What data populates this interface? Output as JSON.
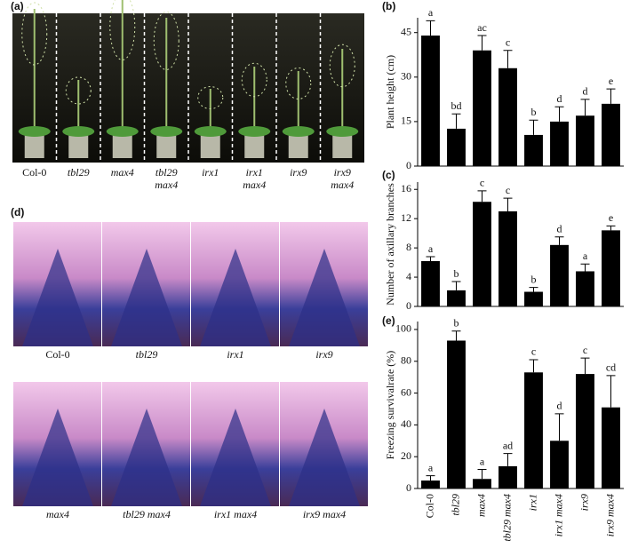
{
  "figure": {
    "panel_labels": [
      "(a)",
      "(b)",
      "(c)",
      "(d)",
      "(e)"
    ],
    "photos_a": [
      [
        "Col-0"
      ],
      [
        "tbl29"
      ],
      [
        "max4"
      ],
      [
        "tbl29",
        "max4"
      ],
      [
        "irx1"
      ],
      [
        "irx1",
        "max4"
      ],
      [
        "irx9"
      ],
      [
        "irx9",
        "max4"
      ]
    ],
    "photos_d": [
      "Col-0",
      "tbl29",
      "irx1",
      "irx9",
      "max4",
      "tbl29 max4",
      "irx1 max4",
      "irx9 max4"
    ]
  },
  "chart_data": [
    {
      "type": "bar",
      "ylabel": "Plant height (cm)",
      "color": "#000000",
      "categories": [
        null,
        null,
        null,
        null,
        null,
        null,
        null,
        null
      ],
      "values": [
        44,
        12.6,
        39,
        33,
        10.5,
        15,
        17,
        21
      ],
      "errors": [
        5,
        5,
        5,
        6,
        5,
        5,
        5.5,
        5
      ],
      "letters": [
        "a",
        "bd",
        "ac",
        "c",
        "b",
        "d",
        "d",
        "e"
      ],
      "ylim": [
        0,
        50
      ],
      "yticks": [
        0,
        15,
        30,
        45
      ]
    },
    {
      "type": "bar",
      "ylabel": "Number of axillary branches",
      "color": "#000000",
      "categories": [
        null,
        null,
        null,
        null,
        null,
        null,
        null,
        null
      ],
      "values": [
        6.2,
        2.2,
        14.3,
        13,
        2,
        8.4,
        4.8,
        10.4
      ],
      "errors": [
        0.6,
        1.2,
        1.5,
        1.8,
        0.6,
        1.1,
        1,
        0.6
      ],
      "letters": [
        "a",
        "b",
        "c",
        "c",
        "b",
        "d",
        "a",
        "e"
      ],
      "ylim": [
        0,
        17
      ],
      "yticks": [
        0,
        4,
        8,
        12,
        16
      ]
    },
    {
      "type": "bar",
      "ylabel": "Freezing survivalrate (%)",
      "color": "#000000",
      "categories": [
        "Col-0",
        "tbl29",
        "max4",
        "tbl29 max4",
        "irx1",
        "irx1 max4",
        "irx9",
        "irx9 max4"
      ],
      "values": [
        5,
        93,
        6,
        14,
        73,
        30,
        72,
        51
      ],
      "errors": [
        3,
        6,
        6,
        8,
        8,
        17,
        10,
        20
      ],
      "letters": [
        "a",
        "b",
        "a",
        "ad",
        "c",
        "d",
        "c",
        "cd"
      ],
      "ylim": [
        0,
        105
      ],
      "yticks": [
        0,
        20,
        40,
        60,
        80,
        100
      ]
    }
  ]
}
